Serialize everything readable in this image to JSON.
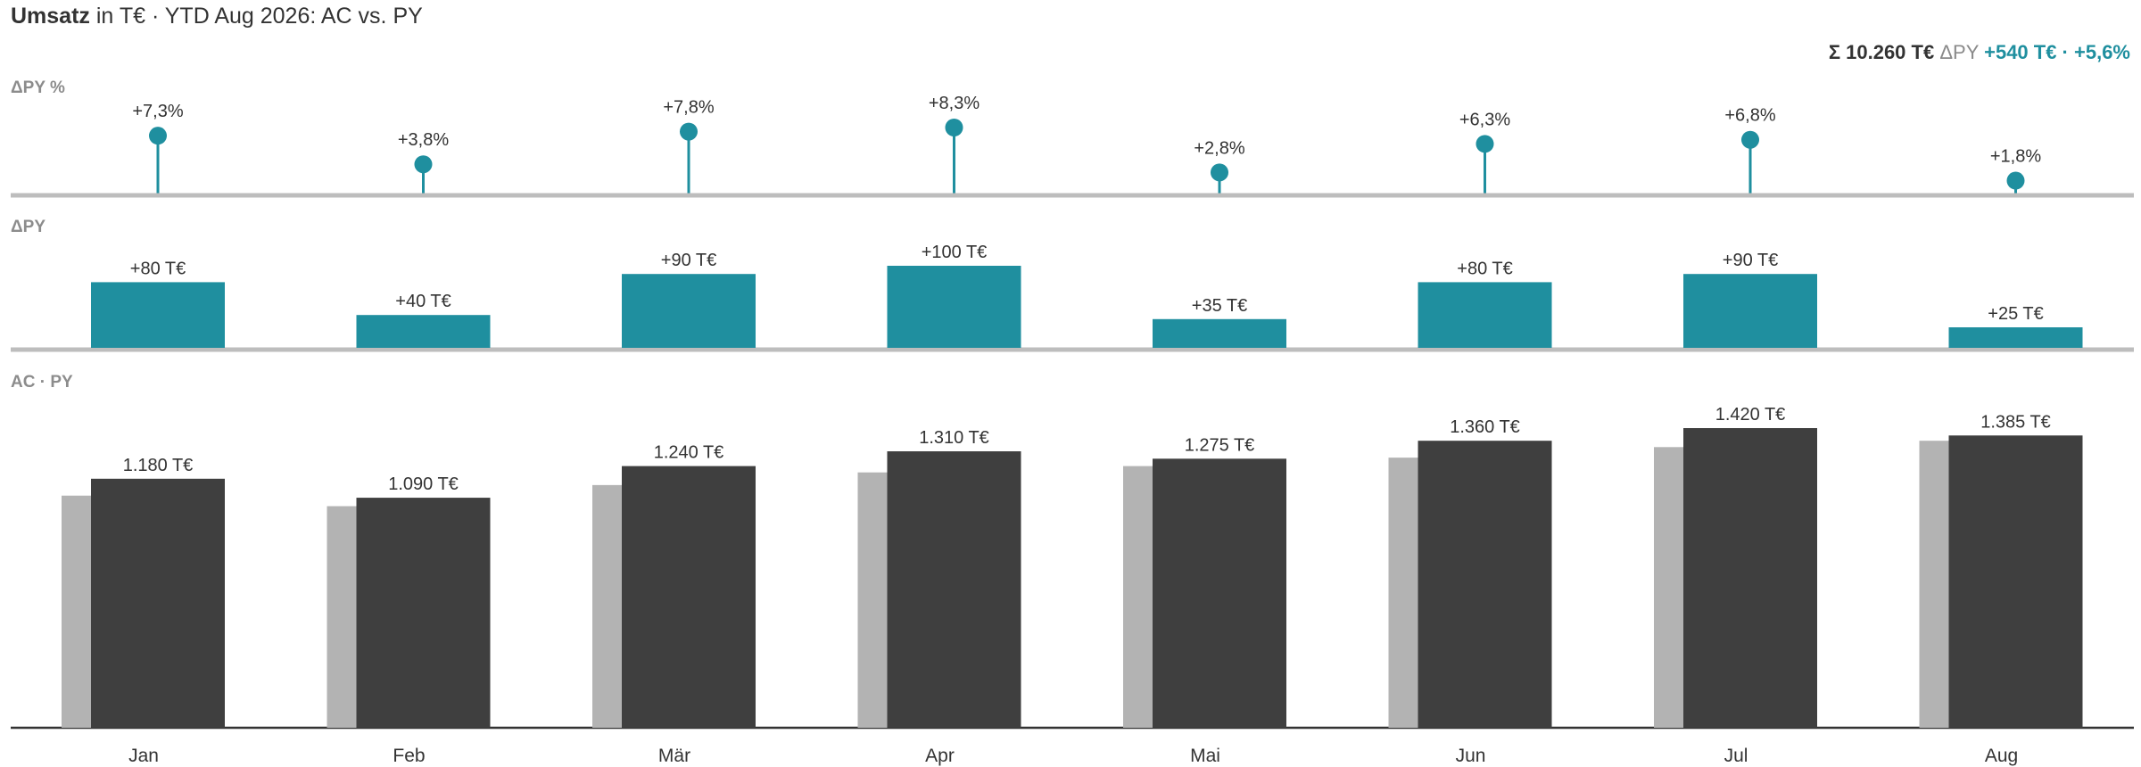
{
  "header": {
    "title_bold": "Umsatz",
    "title_rest": " in T€ · YTD Aug 2026: AC vs. PY",
    "sum_text": "Σ 10.260 T€",
    "delta_label": "ΔPY",
    "delta_text": "+540 T€ · +5,6%"
  },
  "panels": {
    "pct_label": "ΔPY %",
    "abs_label": "ΔPY",
    "main_label": "AC · PY"
  },
  "colors": {
    "ac": "#3f3f3f",
    "py": "#b3b3b3",
    "delta": "#1f8f9f",
    "axis": "#bdbdbd",
    "text": "#333333"
  },
  "chart_data": {
    "type": "bar",
    "unit": "T€",
    "categories": [
      "Jan",
      "Feb",
      "Mär",
      "Apr",
      "Mai",
      "Jun",
      "Jul",
      "Aug"
    ],
    "series": [
      {
        "name": "AC",
        "values": [
          1180,
          1090,
          1240,
          1310,
          1275,
          1360,
          1420,
          1385
        ]
      },
      {
        "name": "PY",
        "values": [
          1100,
          1050,
          1150,
          1210,
          1240,
          1280,
          1330,
          1360
        ]
      }
    ],
    "ac_labels": [
      "1.180 T€",
      "1.090 T€",
      "1.240 T€",
      "1.310 T€",
      "1.275 T€",
      "1.360 T€",
      "1.420 T€",
      "1.385 T€"
    ],
    "delta_abs": [
      80,
      40,
      90,
      100,
      35,
      80,
      90,
      25
    ],
    "delta_abs_labels": [
      "+80 T€",
      "+40 T€",
      "+90 T€",
      "+100 T€",
      "+35 T€",
      "+80 T€",
      "+90 T€",
      "+25 T€"
    ],
    "delta_pct": [
      7.3,
      3.8,
      7.8,
      8.3,
      2.8,
      6.3,
      6.8,
      1.8
    ],
    "delta_pct_labels": [
      "+7,3%",
      "+3,8%",
      "+7,8%",
      "+8,3%",
      "+2,8%",
      "+6,3%",
      "+6,8%",
      "+1,8%"
    ],
    "ylim": [
      0,
      1420
    ],
    "grid": false,
    "legend": "none"
  }
}
